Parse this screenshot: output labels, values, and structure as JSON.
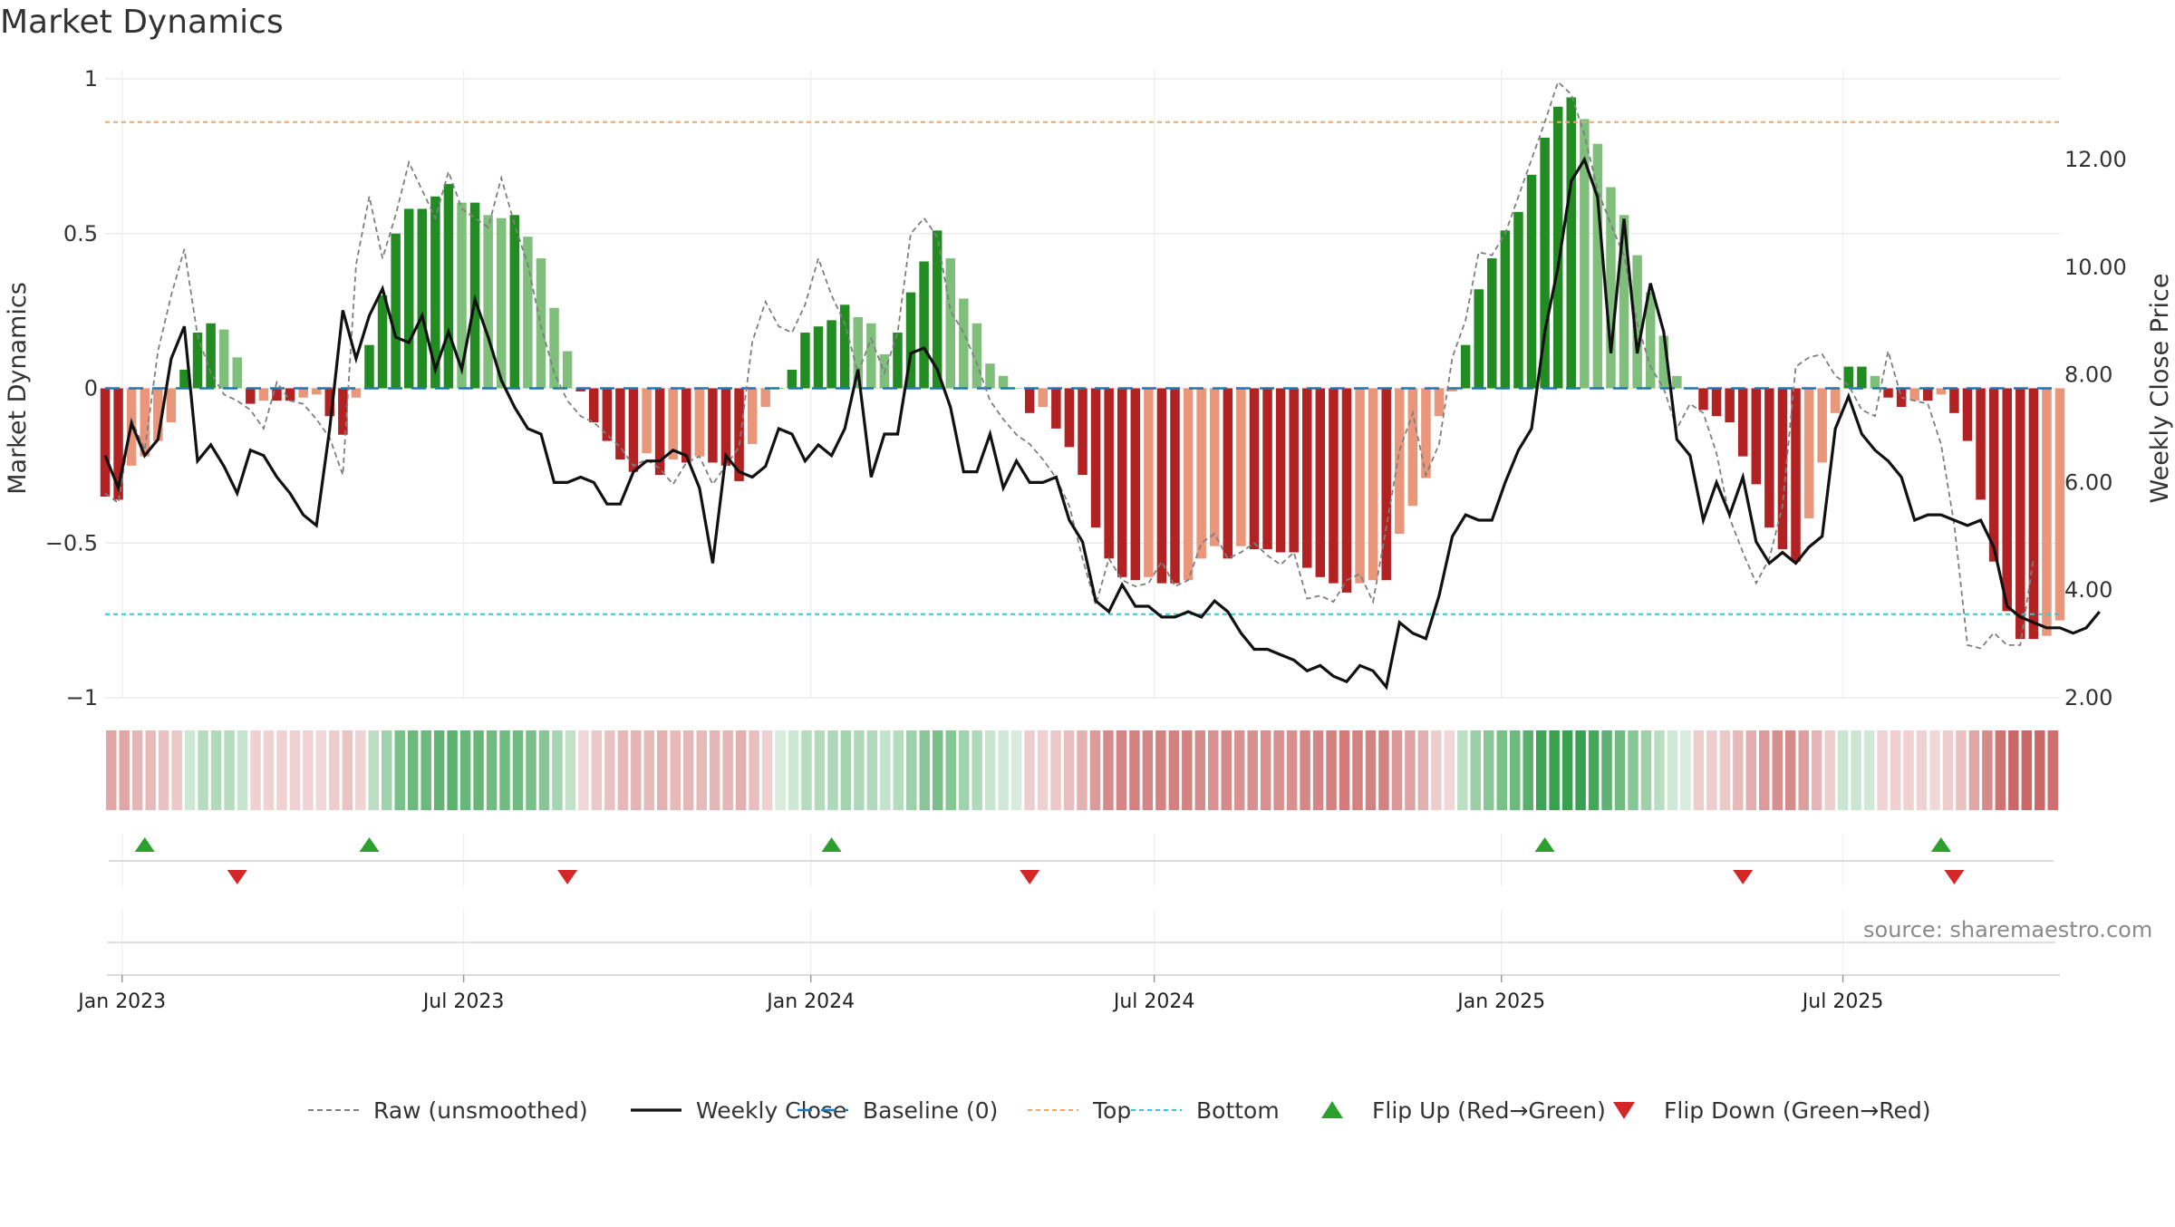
{
  "title": "Market Dynamics",
  "source": "source: sharemaestro.com",
  "colors": {
    "green_dark": "#228B22",
    "green_light": "#7fbf7b",
    "red_dark": "#b22222",
    "red_light": "#e9967a",
    "raw": "#7f7f7f",
    "close": "#111111",
    "baseline": "#1f77b4",
    "top": "#e8a96b",
    "bottom": "#39c6d6",
    "flip_up": "#2ca02c",
    "flip_down": "#d62728"
  },
  "chart_data": {
    "type": "bar",
    "title": "Market Dynamics",
    "ylabel": "Market Dynamics",
    "y2label": "Weekly Close Price",
    "ylim": [
      -1,
      1
    ],
    "y2lim": [
      2,
      13.5
    ],
    "yticks": [
      {
        "v": 1,
        "t": "1"
      },
      {
        "v": 0.5,
        "t": "0.5"
      },
      {
        "v": 0,
        "t": "0"
      },
      {
        "v": -0.5,
        "t": "−0.5"
      },
      {
        "v": -1,
        "t": "−1"
      }
    ],
    "y2ticks": [
      {
        "v": 12,
        "t": "12.00"
      },
      {
        "v": 10,
        "t": "10.00"
      },
      {
        "v": 8,
        "t": "8.00"
      },
      {
        "v": 6,
        "t": "6.00"
      },
      {
        "v": 4,
        "t": "4.00"
      },
      {
        "v": 2,
        "t": "2.00"
      }
    ],
    "xticks": [
      {
        "date": "2023-01-01",
        "label": "Jan 2023"
      },
      {
        "date": "2023-07-01",
        "label": "Jul 2023"
      },
      {
        "date": "2024-01-01",
        "label": "Jan 2024"
      },
      {
        "date": "2024-07-01",
        "label": "Jul 2024"
      },
      {
        "date": "2025-01-01",
        "label": "Jan 2025"
      },
      {
        "date": "2025-07-01",
        "label": "Jul 2025"
      }
    ],
    "start_date": "2022-12-23",
    "week_step_days": 7,
    "top_level": 0.86,
    "bottom_level": -0.73,
    "baseline": 0,
    "dynamics": [
      -0.35,
      -0.36,
      -0.25,
      -0.22,
      -0.17,
      -0.11,
      0.06,
      0.18,
      0.21,
      0.19,
      0.1,
      -0.05,
      -0.04,
      -0.04,
      -0.04,
      -0.03,
      -0.02,
      -0.09,
      -0.15,
      -0.03,
      0.14,
      0.3,
      0.5,
      0.58,
      0.58,
      0.62,
      0.66,
      0.6,
      0.6,
      0.56,
      0.55,
      0.56,
      0.49,
      0.42,
      0.26,
      0.12,
      -0.01,
      -0.11,
      -0.17,
      -0.23,
      -0.27,
      -0.21,
      -0.28,
      -0.23,
      -0.24,
      -0.22,
      -0.24,
      -0.25,
      -0.3,
      -0.18,
      -0.06,
      0.0,
      0.06,
      0.18,
      0.2,
      0.22,
      0.27,
      0.23,
      0.21,
      0.11,
      0.18,
      0.31,
      0.41,
      0.51,
      0.42,
      0.29,
      0.21,
      0.08,
      0.04,
      0.0,
      -0.08,
      -0.06,
      -0.13,
      -0.19,
      -0.28,
      -0.45,
      -0.55,
      -0.61,
      -0.62,
      -0.61,
      -0.63,
      -0.63,
      -0.62,
      -0.55,
      -0.51,
      -0.55,
      -0.51,
      -0.52,
      -0.52,
      -0.53,
      -0.53,
      -0.58,
      -0.61,
      -0.63,
      -0.66,
      -0.63,
      -0.62,
      -0.62,
      -0.47,
      -0.38,
      -0.29,
      -0.09,
      -0.01,
      0.14,
      0.32,
      0.42,
      0.51,
      0.57,
      0.69,
      0.81,
      0.91,
      0.94,
      0.87,
      0.79,
      0.65,
      0.56,
      0.43,
      0.31,
      0.17,
      0.04,
      0.0,
      -0.07,
      -0.09,
      -0.11,
      -0.22,
      -0.31,
      -0.45,
      -0.52,
      -0.56,
      -0.42,
      -0.24,
      -0.08,
      0.07,
      0.07,
      0.04,
      -0.03,
      -0.06,
      -0.04,
      -0.04,
      -0.02,
      -0.08,
      -0.17,
      -0.36,
      -0.56,
      -0.72,
      -0.81,
      -0.81,
      -0.8,
      -0.75
    ],
    "raw": [
      -0.34,
      -0.37,
      -0.1,
      -0.2,
      0.12,
      0.3,
      0.45,
      0.17,
      0.05,
      -0.02,
      -0.04,
      -0.07,
      -0.13,
      0.02,
      -0.04,
      -0.05,
      -0.1,
      -0.16,
      -0.28,
      0.4,
      0.62,
      0.42,
      0.56,
      0.73,
      0.64,
      0.55,
      0.7,
      0.58,
      0.55,
      0.52,
      0.68,
      0.53,
      0.4,
      0.2,
      0.05,
      -0.04,
      -0.09,
      -0.11,
      -0.15,
      -0.19,
      -0.25,
      -0.23,
      -0.26,
      -0.31,
      -0.24,
      -0.22,
      -0.31,
      -0.25,
      -0.19,
      0.15,
      0.28,
      0.2,
      0.18,
      0.27,
      0.42,
      0.3,
      0.21,
      0.05,
      0.16,
      0.05,
      0.18,
      0.5,
      0.55,
      0.49,
      0.25,
      0.18,
      0.08,
      -0.04,
      -0.1,
      -0.15,
      -0.18,
      -0.23,
      -0.29,
      -0.38,
      -0.55,
      -0.7,
      -0.55,
      -0.62,
      -0.64,
      -0.63,
      -0.56,
      -0.64,
      -0.62,
      -0.5,
      -0.47,
      -0.55,
      -0.53,
      -0.5,
      -0.54,
      -0.57,
      -0.53,
      -0.68,
      -0.67,
      -0.69,
      -0.62,
      -0.6,
      -0.69,
      -0.45,
      -0.2,
      -0.08,
      -0.28,
      -0.18,
      0.1,
      0.22,
      0.44,
      0.43,
      0.5,
      0.62,
      0.74,
      0.86,
      0.99,
      0.95,
      0.82,
      0.64,
      0.53,
      0.43,
      0.21,
      0.07,
      0.0,
      -0.13,
      -0.05,
      -0.08,
      -0.21,
      -0.42,
      -0.53,
      -0.63,
      -0.55,
      -0.38,
      0.07,
      0.1,
      0.11,
      0.04,
      0.01,
      -0.07,
      -0.09,
      0.12,
      -0.03,
      -0.04,
      -0.05,
      -0.18,
      -0.44,
      -0.83,
      -0.84,
      -0.79,
      -0.83,
      -0.83,
      -0.55
    ],
    "close": [
      6.5,
      5.9,
      7.1,
      6.5,
      6.8,
      8.3,
      8.9,
      6.4,
      6.7,
      6.3,
      5.8,
      6.6,
      6.5,
      6.1,
      5.8,
      5.4,
      5.2,
      7.0,
      9.2,
      8.3,
      9.1,
      9.6,
      8.7,
      8.6,
      9.1,
      8.1,
      8.8,
      8.1,
      9.4,
      8.7,
      7.9,
      7.4,
      7.0,
      6.9,
      6.0,
      6.0,
      6.1,
      6.0,
      5.6,
      5.6,
      6.2,
      6.4,
      6.4,
      6.6,
      6.5,
      5.9,
      4.5,
      6.5,
      6.2,
      6.1,
      6.3,
      7.0,
      6.9,
      6.4,
      6.7,
      6.5,
      7.0,
      8.1,
      6.1,
      6.9,
      6.9,
      8.4,
      8.5,
      8.1,
      7.4,
      6.2,
      6.2,
      6.9,
      5.9,
      6.4,
      6.0,
      6.0,
      6.1,
      5.3,
      4.9,
      3.8,
      3.6,
      4.1,
      3.7,
      3.7,
      3.5,
      3.5,
      3.6,
      3.5,
      3.8,
      3.6,
      3.2,
      2.9,
      2.9,
      2.8,
      2.7,
      2.5,
      2.6,
      2.4,
      2.3,
      2.6,
      2.5,
      2.2,
      3.4,
      3.2,
      3.1,
      3.9,
      5.0,
      5.4,
      5.3,
      5.3,
      6.0,
      6.6,
      7.0,
      8.8,
      10.0,
      11.6,
      12.0,
      11.3,
      8.4,
      10.9,
      8.4,
      9.7,
      8.8,
      6.8,
      6.5,
      5.3,
      6.0,
      5.4,
      6.1,
      4.9,
      4.5,
      4.7,
      4.5,
      4.8,
      5.0,
      7.0,
      7.6,
      6.9,
      6.6,
      6.4,
      6.1,
      5.3,
      5.4,
      5.4,
      5.3,
      5.2,
      5.3,
      4.8,
      3.7,
      3.5,
      3.4,
      3.3,
      3.3,
      3.2,
      3.3,
      3.6
    ],
    "flip_up_weeks": [
      3,
      20,
      55,
      109,
      139
    ],
    "flip_down_weeks": [
      10,
      35,
      70,
      124,
      140
    ],
    "legend": [
      {
        "label": "Raw (unsmoothed)",
        "kind": "dashed",
        "color": "#7f7f7f"
      },
      {
        "label": "Weekly Close",
        "kind": "solid",
        "color": "#111111"
      },
      {
        "label": "Baseline (0)",
        "kind": "longdash",
        "color": "#1f77b4"
      },
      {
        "label": "Top",
        "kind": "dotted",
        "color": "#e8a96b"
      },
      {
        "label": "Bottom",
        "kind": "dotted",
        "color": "#39c6d6"
      },
      {
        "label": "Flip Up (Red→Green)",
        "kind": "tri-up",
        "color": "#2ca02c"
      },
      {
        "label": "Flip Down (Green→Red)",
        "kind": "tri-down",
        "color": "#d62728"
      }
    ]
  }
}
